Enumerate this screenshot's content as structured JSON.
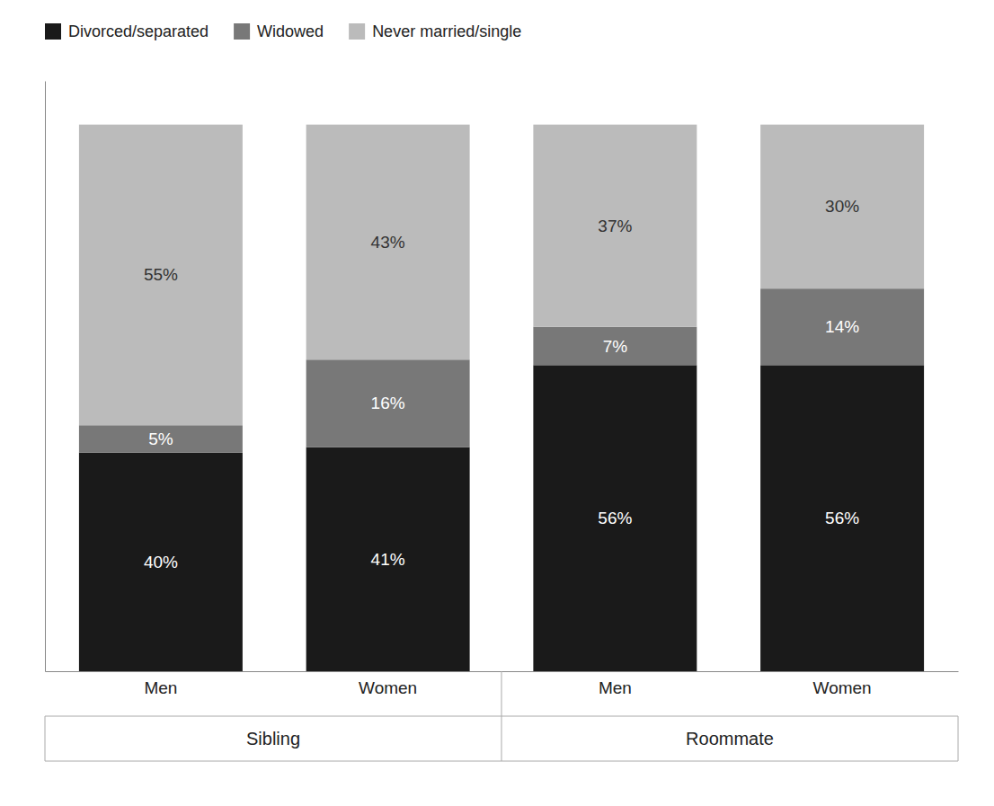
{
  "chart_data": {
    "type": "bar",
    "stacked": true,
    "categories": [
      "Men",
      "Women",
      "Men",
      "Women"
    ],
    "group_labels": [
      "Sibling",
      "Roommate"
    ],
    "series": [
      {
        "name": "Divorced/separated",
        "color": "#1a1a1a",
        "values": [
          40,
          41,
          56,
          56
        ],
        "value_labels": [
          "40%",
          "41%",
          "56%",
          "56%"
        ]
      },
      {
        "name": "Widowed",
        "color": "#787878",
        "values": [
          5,
          16,
          7,
          14
        ],
        "value_labels": [
          "5%",
          "16%",
          "7%",
          "14%"
        ]
      },
      {
        "name": "Never married/single",
        "color": "#bbbbbb",
        "values": [
          55,
          43,
          37,
          30
        ],
        "value_labels": [
          "55%",
          "43%",
          "37%",
          "30%"
        ]
      }
    ],
    "ylim": [
      0,
      108
    ],
    "data_labels": true,
    "tick_labels": "x",
    "legend": "top-left",
    "grid": false
  }
}
